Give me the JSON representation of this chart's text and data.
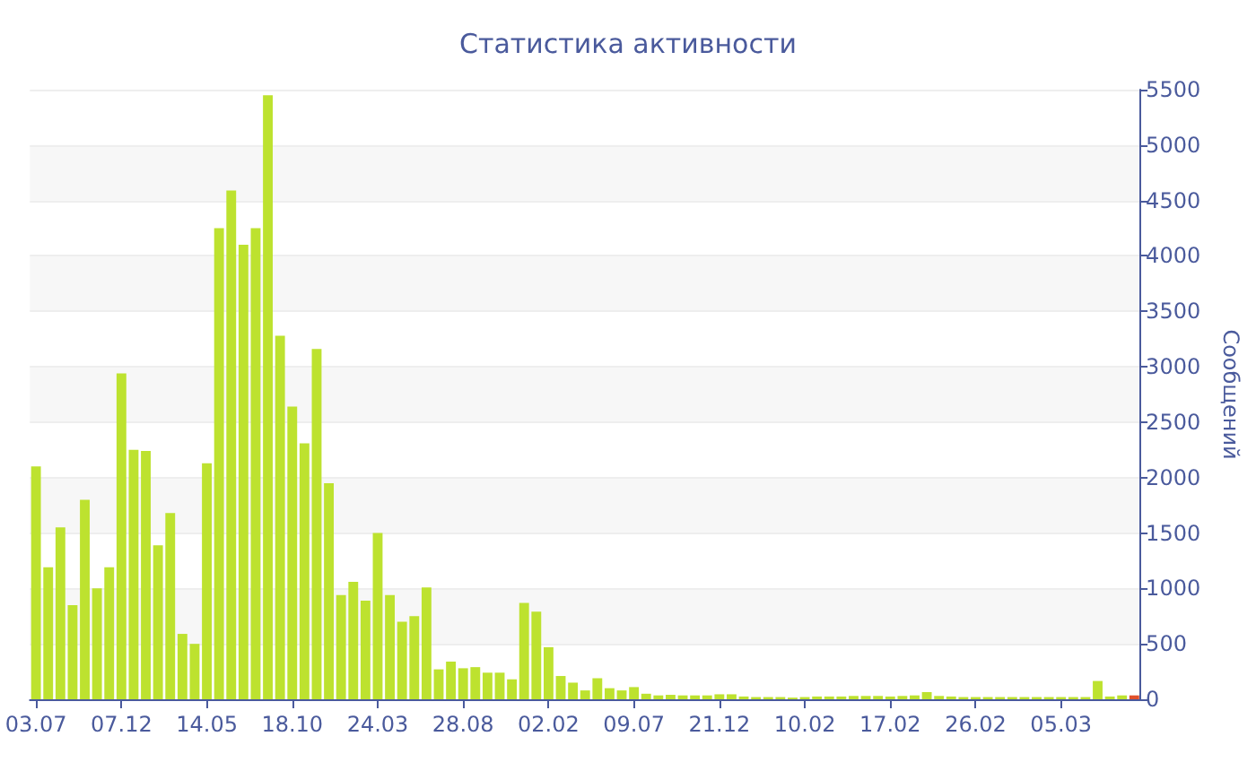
{
  "chart_data": {
    "type": "bar",
    "title": "Статистика активности",
    "ylabel": "Сообщений",
    "categories": [
      "03.07",
      null,
      null,
      null,
      null,
      null,
      null,
      "07.12",
      null,
      null,
      null,
      null,
      null,
      null,
      "14.05",
      null,
      null,
      null,
      null,
      null,
      null,
      "18.10",
      null,
      null,
      null,
      null,
      null,
      null,
      "24.03",
      null,
      null,
      null,
      null,
      null,
      null,
      "28.08",
      null,
      null,
      null,
      null,
      null,
      null,
      "02.02",
      null,
      null,
      null,
      null,
      null,
      null,
      "09.07",
      null,
      null,
      null,
      null,
      null,
      null,
      "21.12",
      null,
      null,
      null,
      null,
      null,
      null,
      "10.02",
      null,
      null,
      null,
      null,
      null,
      null,
      "17.02",
      null,
      null,
      null,
      null,
      null,
      null,
      "26.02",
      null,
      null,
      null,
      null,
      null,
      null,
      "05.03",
      null,
      null,
      null,
      null,
      null,
      null
    ],
    "values": [
      2100,
      1190,
      1550,
      850,
      1800,
      1000,
      1190,
      2940,
      2250,
      2240,
      1390,
      1680,
      590,
      500,
      2130,
      4250,
      4590,
      4100,
      4250,
      5450,
      3280,
      2640,
      2310,
      3160,
      1950,
      940,
      1060,
      890,
      1500,
      940,
      700,
      750,
      1010,
      270,
      340,
      280,
      290,
      240,
      240,
      180,
      870,
      790,
      470,
      210,
      150,
      80,
      190,
      100,
      80,
      110,
      50,
      35,
      40,
      35,
      35,
      35,
      45,
      45,
      25,
      20,
      20,
      20,
      15,
      20,
      25,
      25,
      25,
      30,
      30,
      30,
      25,
      30,
      35,
      65,
      30,
      25,
      20,
      20,
      20,
      20,
      20,
      20,
      20,
      20,
      20,
      20,
      20,
      165,
      25,
      35,
      35
    ],
    "colors": [
      "#bde22f",
      "#bde22f",
      "#bde22f",
      "#bde22f",
      "#bde22f",
      "#bde22f",
      "#bde22f",
      "#bde22f",
      "#bde22f",
      "#bde22f",
      "#bde22f",
      "#bde22f",
      "#bde22f",
      "#bde22f",
      "#bde22f",
      "#bde22f",
      "#bde22f",
      "#bde22f",
      "#bde22f",
      "#bde22f",
      "#bde22f",
      "#bde22f",
      "#bde22f",
      "#bde22f",
      "#bde22f",
      "#bde22f",
      "#bde22f",
      "#bde22f",
      "#bde22f",
      "#bde22f",
      "#bde22f",
      "#bde22f",
      "#bde22f",
      "#bde22f",
      "#bde22f",
      "#bde22f",
      "#bde22f",
      "#bde22f",
      "#bde22f",
      "#bde22f",
      "#bde22f",
      "#bde22f",
      "#bde22f",
      "#bde22f",
      "#bde22f",
      "#bde22f",
      "#bde22f",
      "#bde22f",
      "#bde22f",
      "#bde22f",
      "#bde22f",
      "#bde22f",
      "#bde22f",
      "#bde22f",
      "#bde22f",
      "#bde22f",
      "#bde22f",
      "#bde22f",
      "#bde22f",
      "#bde22f",
      "#bde22f",
      "#bde22f",
      "#bde22f",
      "#bde22f",
      "#bde22f",
      "#bde22f",
      "#bde22f",
      "#bde22f",
      "#bde22f",
      "#bde22f",
      "#bde22f",
      "#bde22f",
      "#bde22f",
      "#bde22f",
      "#bde22f",
      "#bde22f",
      "#bde22f",
      "#bde22f",
      "#bde22f",
      "#bde22f",
      "#bde22f",
      "#bde22f",
      "#bde22f",
      "#bde22f",
      "#bde22f",
      "#bde22f",
      "#bde22f",
      "#bde22f",
      "#bde22f",
      "#bde22f",
      "#e0502a"
    ],
    "ylim": [
      0,
      5500
    ],
    "yticks": [
      0,
      500,
      1000,
      1500,
      2000,
      2500,
      3000,
      3500,
      4000,
      4500,
      5000,
      5500
    ],
    "grid": "y"
  }
}
